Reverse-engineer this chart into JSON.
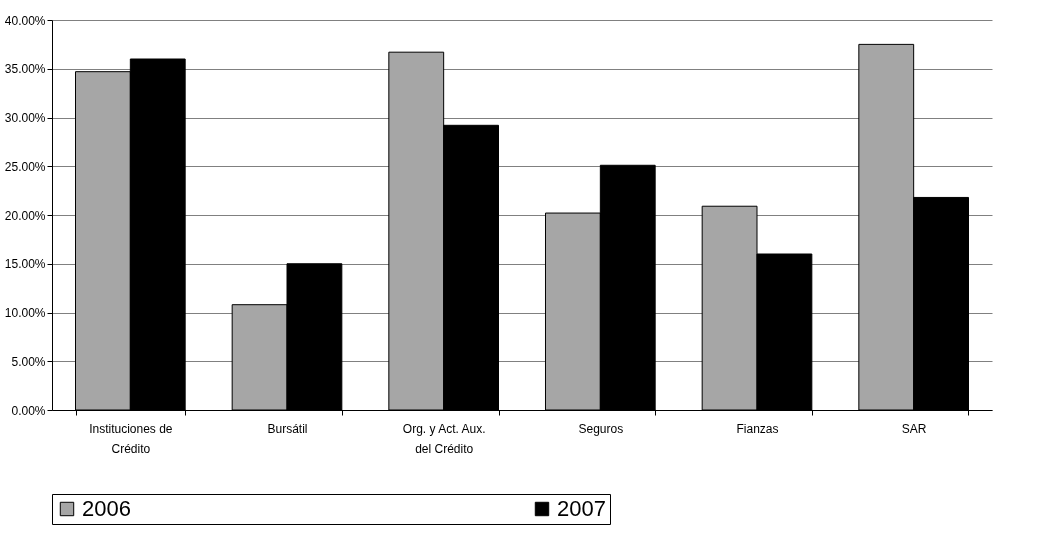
{
  "chart_data": {
    "type": "bar",
    "categories": [
      "Instituciones de Crédito",
      "Bursátil",
      "Org. y Act. Aux. del Crédito",
      "Seguros",
      "Fianzas",
      "SAR"
    ],
    "series": [
      {
        "name": "2006",
        "color": "#a6a6a6",
        "values": [
          34.7,
          10.8,
          36.7,
          20.2,
          20.9,
          37.5
        ]
      },
      {
        "name": "2007",
        "color": "#000000",
        "values": [
          36.0,
          15.0,
          29.2,
          25.1,
          16.0,
          21.8
        ]
      }
    ],
    "ylim": [
      0,
      40
    ],
    "yticks": [
      {
        "value": 0,
        "label": "0.00%"
      },
      {
        "value": 5,
        "label": "5.00%"
      },
      {
        "value": 10,
        "label": "10.00%"
      },
      {
        "value": 15,
        "label": "15.00%"
      },
      {
        "value": 20,
        "label": "20.00%"
      },
      {
        "value": 25,
        "label": "25.00%"
      },
      {
        "value": 30,
        "label": "30.00%"
      },
      {
        "value": 35,
        "label": "35.00%"
      },
      {
        "value": 40,
        "label": "40.00%"
      }
    ],
    "grid": "y",
    "legend": "bottom"
  }
}
